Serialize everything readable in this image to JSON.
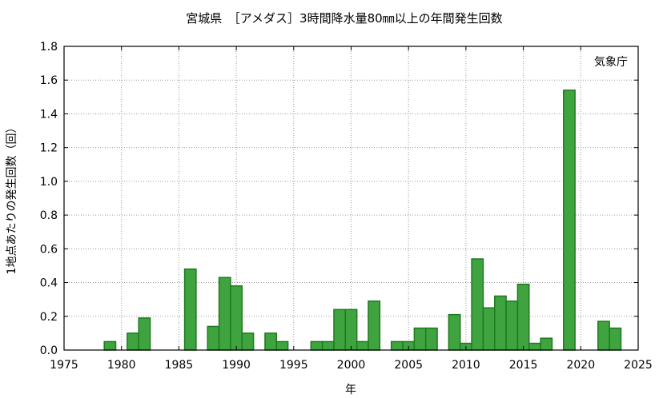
{
  "chart_data": {
    "type": "bar",
    "title": "宮城県　［アメダス］3時間降水量80㎜以上の年間発生回数",
    "annotation": "気象庁",
    "xlabel": "年",
    "ylabel": "1地点あたりの発生回数（回）",
    "xlim": [
      1975,
      2025
    ],
    "ylim": [
      0,
      1.8
    ],
    "xticks": [
      1975,
      1980,
      1985,
      1990,
      1995,
      2000,
      2005,
      2010,
      2015,
      2020,
      2025
    ],
    "yticks": [
      "0.0",
      "0.2",
      "0.4",
      "0.6",
      "0.8",
      "1.0",
      "1.2",
      "1.4",
      "1.6",
      "1.8"
    ],
    "grid": true,
    "bar_color": "#3fa33f",
    "bar_edge_color": "#1f7a1f",
    "x": [
      1976,
      1977,
      1978,
      1979,
      1980,
      1981,
      1982,
      1983,
      1984,
      1985,
      1986,
      1987,
      1988,
      1989,
      1990,
      1991,
      1992,
      1993,
      1994,
      1995,
      1996,
      1997,
      1998,
      1999,
      2000,
      2001,
      2002,
      2003,
      2004,
      2005,
      2006,
      2007,
      2008,
      2009,
      2010,
      2011,
      2012,
      2013,
      2014,
      2015,
      2016,
      2017,
      2018,
      2019,
      2020,
      2021,
      2022,
      2023
    ],
    "values": [
      0,
      0,
      0,
      0.05,
      0,
      0.1,
      0.19,
      0,
      0,
      0,
      0.48,
      0,
      0.14,
      0.43,
      0.38,
      0.1,
      0,
      0.1,
      0.05,
      0,
      0,
      0.05,
      0.05,
      0.24,
      0.24,
      0.05,
      0.29,
      0,
      0.05,
      0.05,
      0.13,
      0.13,
      0,
      0.21,
      0.04,
      0.54,
      0.25,
      0.32,
      0.29,
      0.39,
      0.04,
      0.07,
      0,
      1.54,
      0,
      0,
      0.17,
      0.13
    ]
  }
}
